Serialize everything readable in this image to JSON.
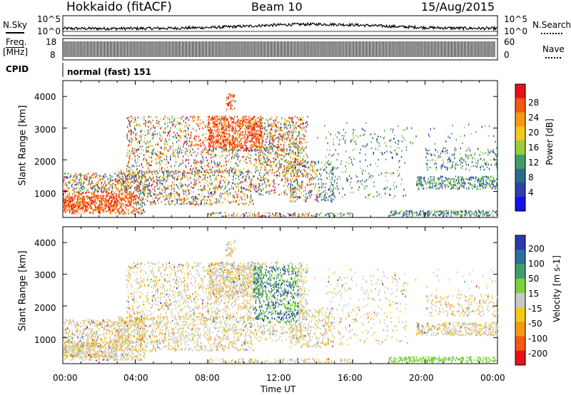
{
  "header": {
    "station": "Hokkaido (fitACF)",
    "beam": "Beam 10",
    "date": "15/Aug/2015"
  },
  "nsky_panel": {
    "left_label": "N.Sky",
    "left_ticks": [
      "10^5",
      "10^0"
    ],
    "right_ticks": [
      "10^5",
      "10^0"
    ],
    "right_label": "N.Search"
  },
  "freq_panel": {
    "left_label_1": "Freq.",
    "left_label_2": "[MHz]",
    "left_ticks": [
      "18",
      "8"
    ],
    "right_ticks": [
      "60",
      "0"
    ],
    "right_label": "Nave"
  },
  "cpid": {
    "label": "CPID",
    "value": "normal (fast) 151"
  },
  "chart_data": [
    {
      "type": "heatmap",
      "name": "power",
      "ylabel": "Slant Range [km]",
      "yticks": [
        "4000",
        "3000",
        "2000",
        "1000"
      ],
      "ylim": [
        180,
        4500
      ],
      "xlim_hours": [
        0,
        24
      ],
      "colorbar_label": "Power [dB]",
      "colorbar_ticks": [
        "28",
        "24",
        "20",
        "16",
        "12",
        "8",
        "4"
      ],
      "colorbar_colors": [
        "#e8101a",
        "#f25a12",
        "#f59a14",
        "#f5c81a",
        "#9ccc3c",
        "#3f9e6a",
        "#2a6b8a",
        "#2f3ea8",
        "#1010f0"
      ]
    },
    {
      "type": "heatmap",
      "name": "velocity",
      "ylabel": "Slant Range [km]",
      "yticks": [
        "4000",
        "3000",
        "2000",
        "1000"
      ],
      "ylim": [
        180,
        4500
      ],
      "xlim_hours": [
        0,
        24
      ],
      "colorbar_label": "Velocity [m s-1]",
      "colorbar_ticks": [
        "200",
        "100",
        "50",
        "15",
        "-15",
        "-50",
        "-100",
        "-200"
      ],
      "colorbar_colors": [
        "#2a3aa8",
        "#2f6e9a",
        "#3f9e6a",
        "#7cd23c",
        "#c8c8c8",
        "#f5c81a",
        "#f59a14",
        "#f25a12",
        "#e8101a"
      ]
    }
  ],
  "x_axis": {
    "ticks": [
      "00:00",
      "04:00",
      "08:00",
      "12:00",
      "16:00",
      "20:00",
      "00:00"
    ],
    "label": "Time UT"
  },
  "colors": {
    "red": "#e8101a",
    "orange": "#f59a14",
    "yellow": "#f5c81a",
    "green": "#7cd23c",
    "teal": "#3f9e6a",
    "blue": "#2a3aa8",
    "grey": "#c8c8c8"
  }
}
